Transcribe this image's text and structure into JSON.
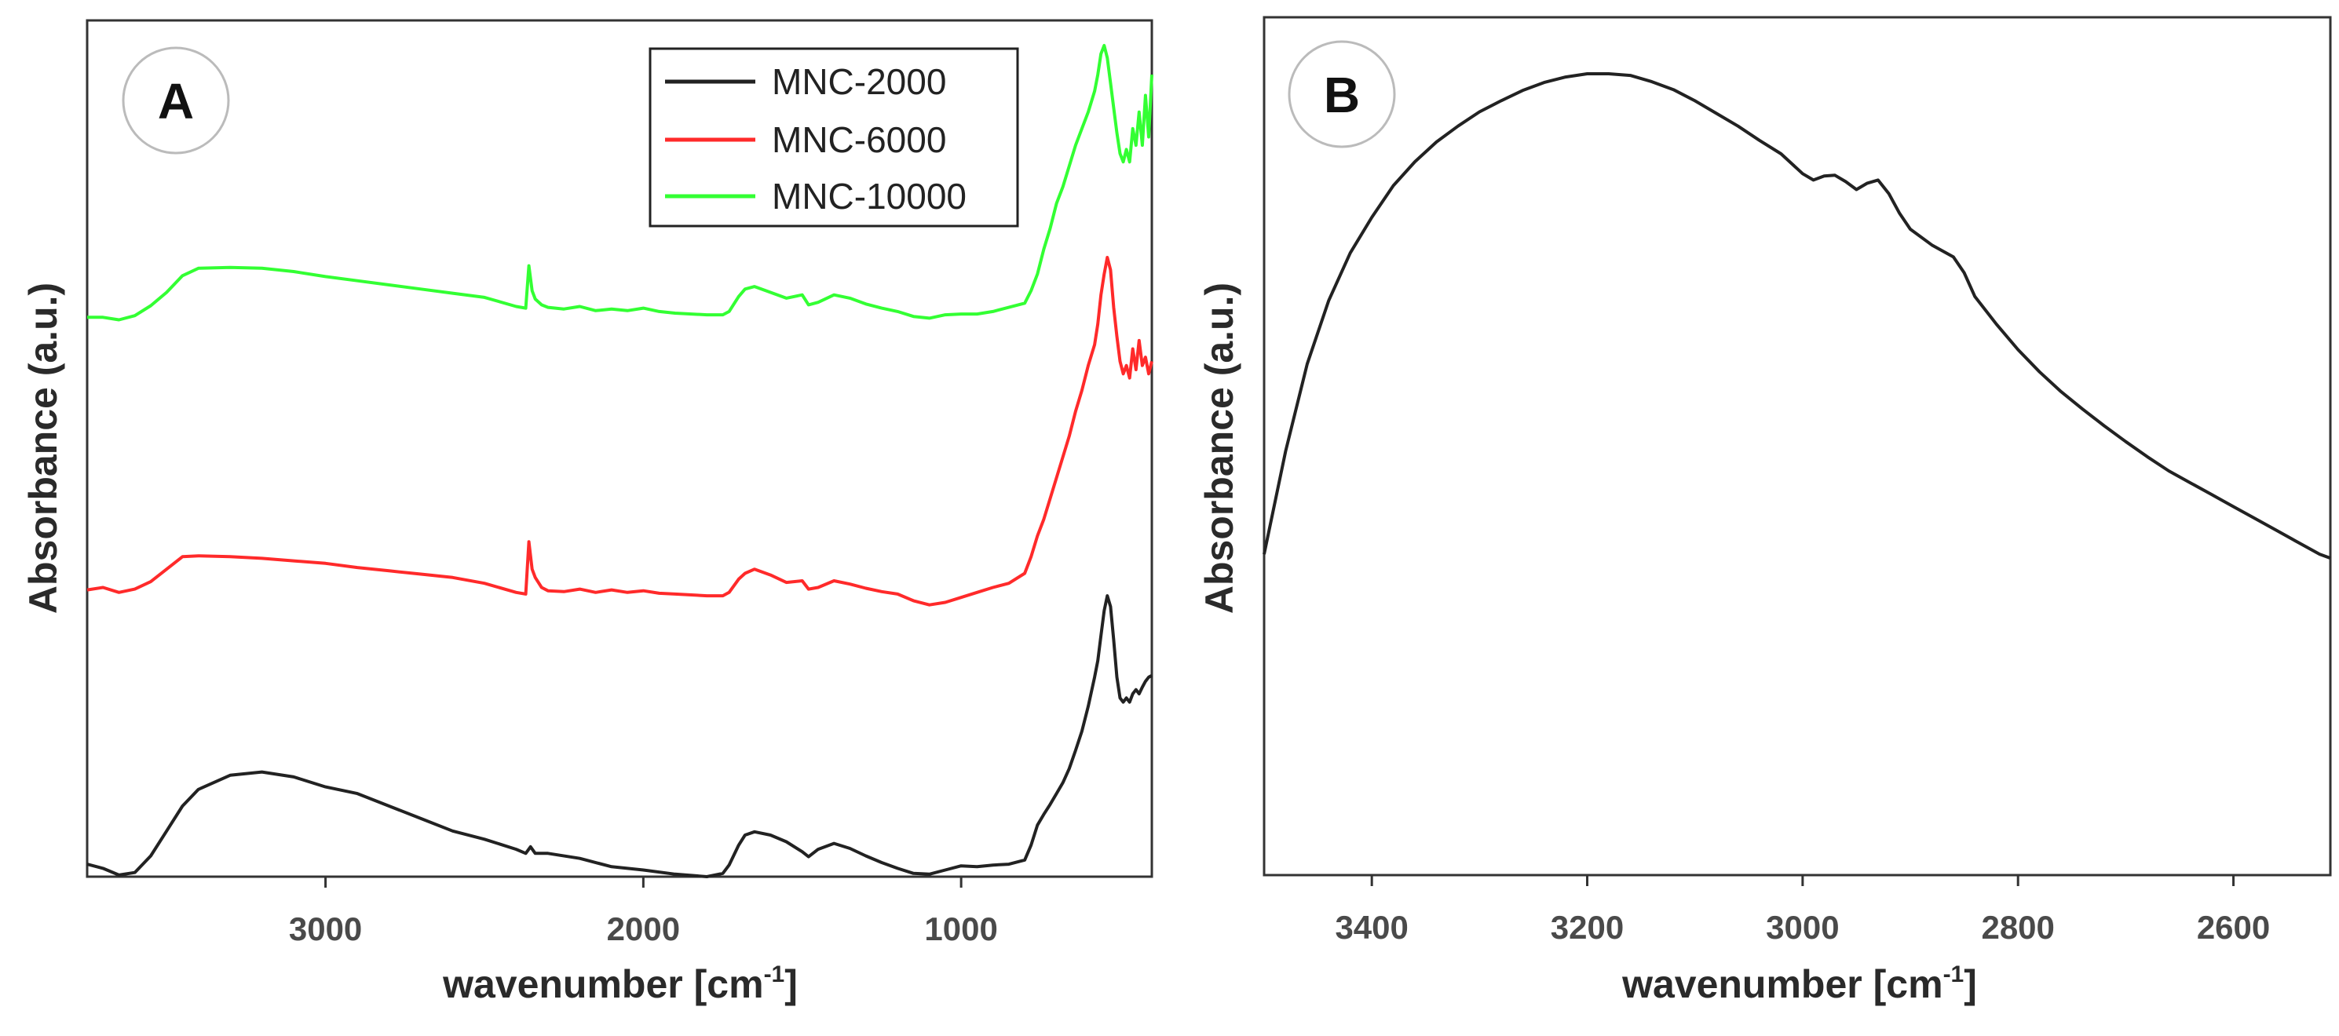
{
  "colors": {
    "mnc2000": "#222222",
    "mnc6000": "#ff2a2a",
    "mnc10000": "#33ff33",
    "spectrum_b": "#222222",
    "frame": "#333333"
  },
  "chart_data": [
    {
      "panel": "A",
      "type": "line",
      "xlabel": "wavenumber [cm",
      "xlabel_sup": "-1",
      "xlabel_end": "]",
      "ylabel": "Absorbance (a.u.)",
      "xlim": [
        3750,
        400
      ],
      "ylim": [
        0,
        100
      ],
      "x_ticks": [
        3000,
        2000,
        1000
      ],
      "x_tick_labels": [
        "3000",
        "2000",
        "1000"
      ],
      "y_ticks": [],
      "legend": {
        "position": "top-right",
        "entries": [
          "MNC-2000",
          "MNC-6000",
          "MNC-10000"
        ]
      },
      "series": [
        {
          "name": "MNC-2000",
          "color": "#222222",
          "x": [
            3750,
            3700,
            3650,
            3600,
            3550,
            3500,
            3450,
            3400,
            3300,
            3200,
            3100,
            3000,
            2900,
            2800,
            2700,
            2600,
            2500,
            2400,
            2370,
            2355,
            2340,
            2300,
            2200,
            2100,
            2000,
            1900,
            1800,
            1750,
            1730,
            1700,
            1680,
            1650,
            1600,
            1550,
            1500,
            1480,
            1450,
            1400,
            1350,
            1300,
            1250,
            1200,
            1150,
            1100,
            1050,
            1000,
            950,
            900,
            850,
            800,
            780,
            760,
            740,
            720,
            700,
            680,
            660,
            640,
            620,
            600,
            580,
            570,
            560,
            550,
            540,
            530,
            520,
            510,
            500,
            490,
            480,
            470,
            460,
            450,
            440,
            430,
            420,
            410,
            400
          ],
          "values": [
            1.5,
            1.0,
            0.2,
            0.5,
            2.5,
            5.5,
            8.5,
            10.5,
            12.2,
            12.6,
            12.0,
            10.8,
            10.0,
            8.5,
            7.0,
            5.5,
            4.5,
            3.3,
            2.8,
            3.6,
            2.8,
            2.8,
            2.2,
            1.2,
            0.8,
            0.3,
            0.0,
            0.4,
            1.4,
            3.8,
            5.0,
            5.4,
            5.0,
            4.2,
            3.0,
            2.4,
            3.3,
            4.0,
            3.4,
            2.5,
            1.7,
            1.0,
            0.4,
            0.3,
            0.8,
            1.3,
            1.2,
            1.4,
            1.5,
            2.0,
            3.8,
            6.2,
            7.5,
            8.7,
            10.0,
            11.3,
            13.0,
            15.2,
            17.5,
            20.5,
            24.0,
            26.0,
            29.0,
            32.0,
            33.8,
            32.5,
            28.5,
            24.0,
            21.5,
            21.0,
            21.5,
            21.0,
            22.0,
            22.5,
            22.0,
            22.8,
            23.5,
            24.0,
            24.2
          ]
        },
        {
          "name": "MNC-6000",
          "color": "#ff2a2a",
          "x": [
            3750,
            3700,
            3650,
            3600,
            3550,
            3500,
            3450,
            3400,
            3300,
            3200,
            3100,
            3000,
            2900,
            2800,
            2700,
            2600,
            2500,
            2400,
            2370,
            2360,
            2350,
            2340,
            2320,
            2300,
            2250,
            2200,
            2150,
            2100,
            2050,
            2000,
            1950,
            1900,
            1800,
            1750,
            1730,
            1700,
            1680,
            1650,
            1600,
            1550,
            1500,
            1480,
            1450,
            1400,
            1350,
            1300,
            1250,
            1200,
            1150,
            1100,
            1050,
            1000,
            950,
            900,
            850,
            800,
            780,
            760,
            740,
            720,
            700,
            680,
            660,
            640,
            620,
            600,
            580,
            570,
            560,
            550,
            540,
            530,
            520,
            510,
            500,
            490,
            480,
            470,
            460,
            450,
            440,
            430,
            420,
            410,
            400
          ],
          "values": [
            34.5,
            34.8,
            34.2,
            34.6,
            35.5,
            37.0,
            38.5,
            38.6,
            38.5,
            38.3,
            38.0,
            37.7,
            37.2,
            36.8,
            36.4,
            36.0,
            35.3,
            34.2,
            34.0,
            40.3,
            37.0,
            36.0,
            34.8,
            34.4,
            34.3,
            34.6,
            34.2,
            34.5,
            34.2,
            34.4,
            34.1,
            34.0,
            33.8,
            33.8,
            34.2,
            35.8,
            36.5,
            37.0,
            36.3,
            35.4,
            35.6,
            34.6,
            34.8,
            35.6,
            35.2,
            34.7,
            34.3,
            34.0,
            33.2,
            32.7,
            33.0,
            33.6,
            34.2,
            34.8,
            35.3,
            36.5,
            38.5,
            41.0,
            43.0,
            45.5,
            48.0,
            50.5,
            53.0,
            56.0,
            58.5,
            61.5,
            64.0,
            66.5,
            70.0,
            72.5,
            74.5,
            73.0,
            68.5,
            65.0,
            62.0,
            60.5,
            61.5,
            60.0,
            63.5,
            61.0,
            64.5,
            61.5,
            62.5,
            60.5,
            62.0
          ]
        },
        {
          "name": "MNC-10000",
          "color": "#33ff33",
          "x": [
            3750,
            3700,
            3650,
            3600,
            3550,
            3500,
            3450,
            3400,
            3300,
            3200,
            3100,
            3000,
            2900,
            2800,
            2700,
            2600,
            2500,
            2400,
            2370,
            2360,
            2350,
            2340,
            2320,
            2300,
            2250,
            2200,
            2150,
            2100,
            2050,
            2000,
            1950,
            1900,
            1800,
            1750,
            1730,
            1700,
            1680,
            1650,
            1600,
            1550,
            1500,
            1480,
            1450,
            1400,
            1350,
            1300,
            1250,
            1200,
            1150,
            1100,
            1050,
            1000,
            950,
            900,
            850,
            800,
            780,
            760,
            740,
            720,
            700,
            680,
            660,
            640,
            620,
            600,
            580,
            570,
            560,
            550,
            540,
            530,
            520,
            510,
            500,
            490,
            480,
            470,
            460,
            450,
            440,
            430,
            420,
            410,
            400
          ],
          "values": [
            67.3,
            67.3,
            67.0,
            67.5,
            68.7,
            70.3,
            72.3,
            73.2,
            73.3,
            73.2,
            72.8,
            72.2,
            71.7,
            71.2,
            70.7,
            70.2,
            69.7,
            68.6,
            68.4,
            73.5,
            70.5,
            69.5,
            68.8,
            68.5,
            68.3,
            68.6,
            68.1,
            68.3,
            68.1,
            68.4,
            68.0,
            67.8,
            67.6,
            67.6,
            68.0,
            69.8,
            70.7,
            71.0,
            70.3,
            69.6,
            70.0,
            68.8,
            69.1,
            70.0,
            69.6,
            68.9,
            68.4,
            68.0,
            67.4,
            67.2,
            67.6,
            67.7,
            67.7,
            68.0,
            68.5,
            69.0,
            70.5,
            72.5,
            75.5,
            78.0,
            81.0,
            83.0,
            85.5,
            88.0,
            90.0,
            92.0,
            94.5,
            96.5,
            99.0,
            100.0,
            98.5,
            95.5,
            92.5,
            89.5,
            87.0,
            86.0,
            87.5,
            86.0,
            90.0,
            88.0,
            92.0,
            88.0,
            94.0,
            89.0,
            96.5
          ]
        }
      ]
    },
    {
      "panel": "B",
      "type": "line",
      "xlabel": "wavenumber [cm",
      "xlabel_sup": "-1",
      "xlabel_end": "]",
      "ylabel": "Absorbance (a.u.)",
      "xlim": [
        3500,
        2510
      ],
      "ylim": [
        0,
        100
      ],
      "x_ticks": [
        3400,
        3200,
        3000,
        2800,
        2600
      ],
      "x_tick_labels": [
        "3400",
        "3200",
        "3000",
        "2800",
        "2600"
      ],
      "y_ticks": [],
      "series": [
        {
          "name": "spectrum",
          "color": "#222222",
          "x": [
            3500,
            3480,
            3460,
            3440,
            3420,
            3400,
            3380,
            3360,
            3340,
            3320,
            3300,
            3280,
            3260,
            3240,
            3220,
            3200,
            3180,
            3160,
            3140,
            3120,
            3100,
            3080,
            3060,
            3040,
            3020,
            3000,
            2990,
            2980,
            2970,
            2960,
            2950,
            2940,
            2930,
            2920,
            2910,
            2900,
            2880,
            2860,
            2850,
            2840,
            2820,
            2800,
            2780,
            2760,
            2740,
            2720,
            2700,
            2680,
            2660,
            2640,
            2620,
            2600,
            2580,
            2560,
            2540,
            2520,
            2510
          ],
          "values": [
            39.0,
            52.0,
            63.0,
            71.0,
            77.0,
            81.5,
            85.5,
            88.5,
            91.0,
            93.0,
            94.8,
            96.2,
            97.5,
            98.5,
            99.2,
            99.6,
            99.6,
            99.4,
            98.6,
            97.6,
            96.2,
            94.6,
            93.0,
            91.2,
            89.5,
            87.0,
            86.2,
            86.7,
            86.8,
            86.0,
            85.0,
            85.8,
            86.2,
            84.5,
            82.0,
            80.0,
            78.0,
            76.5,
            74.5,
            71.5,
            68.0,
            64.8,
            62.0,
            59.5,
            57.3,
            55.2,
            53.2,
            51.3,
            49.5,
            48.0,
            46.5,
            45.0,
            43.5,
            42.0,
            40.5,
            39.0,
            38.5
          ]
        }
      ]
    }
  ]
}
